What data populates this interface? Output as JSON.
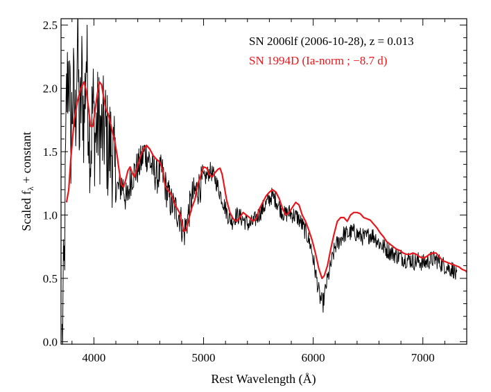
{
  "chart_data": {
    "type": "line",
    "xlabel": "Rest Wavelength (Å)",
    "ylabel_main": "Scaled f",
    "ylabel_sub": "λ",
    "ylabel_tail": " + constant",
    "xlim": [
      3700,
      7400
    ],
    "ylim": [
      -0.02,
      2.55
    ],
    "xticks": [
      4000,
      5000,
      6000,
      7000
    ],
    "xtick_labels": [
      "4000",
      "5000",
      "6000",
      "7000"
    ],
    "yticks": [
      0.0,
      0.5,
      1.0,
      1.5,
      2.0,
      2.5
    ],
    "ytick_labels": [
      "0.0",
      "0.5",
      "1.0",
      "1.5",
      "2.0",
      "2.5"
    ],
    "grid": false,
    "legend_position": "top-right",
    "series": [
      {
        "name": "SN 2006lf (2006-10-28), z = 0.013",
        "color": "#000000",
        "style": "noisy",
        "points": [
          [
            3710,
            0.0
          ],
          [
            3730,
            0.6
          ],
          [
            3750,
            1.9
          ],
          [
            3770,
            2.2
          ],
          [
            3790,
            1.6
          ],
          [
            3810,
            2.0
          ],
          [
            3830,
            1.7
          ],
          [
            3850,
            2.4
          ],
          [
            3870,
            1.6
          ],
          [
            3890,
            2.1
          ],
          [
            3910,
            1.7
          ],
          [
            3930,
            2.3
          ],
          [
            3950,
            1.8
          ],
          [
            3970,
            1.5
          ],
          [
            3990,
            1.9
          ],
          [
            4010,
            1.6
          ],
          [
            4040,
            1.75
          ],
          [
            4070,
            1.6
          ],
          [
            4100,
            1.7
          ],
          [
            4130,
            1.5
          ],
          [
            4160,
            1.55
          ],
          [
            4190,
            1.3
          ],
          [
            4220,
            1.2
          ],
          [
            4260,
            1.25
          ],
          [
            4300,
            1.1
          ],
          [
            4340,
            1.3
          ],
          [
            4380,
            1.35
          ],
          [
            4420,
            1.4
          ],
          [
            4460,
            1.5
          ],
          [
            4500,
            1.45
          ],
          [
            4540,
            1.35
          ],
          [
            4580,
            1.3
          ],
          [
            4620,
            1.35
          ],
          [
            4660,
            1.2
          ],
          [
            4700,
            1.1
          ],
          [
            4740,
            1.05
          ],
          [
            4780,
            1.0
          ],
          [
            4820,
            0.85
          ],
          [
            4860,
            1.0
          ],
          [
            4900,
            1.15
          ],
          [
            4940,
            1.2
          ],
          [
            4980,
            1.25
          ],
          [
            5020,
            1.3
          ],
          [
            5060,
            1.35
          ],
          [
            5100,
            1.3
          ],
          [
            5140,
            1.2
          ],
          [
            5180,
            1.1
          ],
          [
            5220,
            1.0
          ],
          [
            5260,
            0.95
          ],
          [
            5300,
            1.0
          ],
          [
            5340,
            0.98
          ],
          [
            5380,
            0.95
          ],
          [
            5420,
            0.92
          ],
          [
            5460,
            0.95
          ],
          [
            5500,
            1.0
          ],
          [
            5540,
            1.05
          ],
          [
            5580,
            1.1
          ],
          [
            5620,
            1.15
          ],
          [
            5660,
            1.12
          ],
          [
            5700,
            1.05
          ],
          [
            5740,
            1.0
          ],
          [
            5780,
            1.02
          ],
          [
            5820,
            1.0
          ],
          [
            5860,
            0.98
          ],
          [
            5900,
            0.92
          ],
          [
            5940,
            0.85
          ],
          [
            5980,
            0.75
          ],
          [
            6020,
            0.55
          ],
          [
            6060,
            0.35
          ],
          [
            6090,
            0.3
          ],
          [
            6120,
            0.45
          ],
          [
            6160,
            0.6
          ],
          [
            6200,
            0.75
          ],
          [
            6240,
            0.8
          ],
          [
            6280,
            0.85
          ],
          [
            6320,
            0.85
          ],
          [
            6360,
            0.87
          ],
          [
            6400,
            0.85
          ],
          [
            6440,
            0.83
          ],
          [
            6480,
            0.82
          ],
          [
            6520,
            0.85
          ],
          [
            6560,
            0.83
          ],
          [
            6600,
            0.78
          ],
          [
            6640,
            0.75
          ],
          [
            6680,
            0.72
          ],
          [
            6720,
            0.7
          ],
          [
            6760,
            0.68
          ],
          [
            6800,
            0.67
          ],
          [
            6840,
            0.65
          ],
          [
            6880,
            0.65
          ],
          [
            6920,
            0.63
          ],
          [
            6960,
            0.64
          ],
          [
            7000,
            0.62
          ],
          [
            7040,
            0.63
          ],
          [
            7080,
            0.65
          ],
          [
            7120,
            0.65
          ],
          [
            7160,
            0.62
          ],
          [
            7200,
            0.6
          ],
          [
            7240,
            0.58
          ],
          [
            7280,
            0.57
          ],
          [
            7310,
            0.5
          ]
        ]
      },
      {
        "name": "SN 1994D (Ia-norm ; −8.7 d)",
        "color": "#e8171c",
        "style": "smooth",
        "points": [
          [
            3750,
            1.1
          ],
          [
            3770,
            1.2
          ],
          [
            3790,
            1.45
          ],
          [
            3820,
            1.75
          ],
          [
            3850,
            1.9
          ],
          [
            3880,
            2.0
          ],
          [
            3910,
            2.05
          ],
          [
            3930,
            1.98
          ],
          [
            3950,
            1.85
          ],
          [
            3970,
            1.7
          ],
          [
            3990,
            1.7
          ],
          [
            4010,
            1.82
          ],
          [
            4030,
            1.95
          ],
          [
            4050,
            2.05
          ],
          [
            4070,
            2.03
          ],
          [
            4090,
            1.92
          ],
          [
            4110,
            1.83
          ],
          [
            4130,
            1.8
          ],
          [
            4150,
            1.73
          ],
          [
            4170,
            1.65
          ],
          [
            4190,
            1.58
          ],
          [
            4210,
            1.48
          ],
          [
            4230,
            1.35
          ],
          [
            4250,
            1.24
          ],
          [
            4270,
            1.22
          ],
          [
            4290,
            1.28
          ],
          [
            4310,
            1.35
          ],
          [
            4330,
            1.38
          ],
          [
            4350,
            1.33
          ],
          [
            4370,
            1.3
          ],
          [
            4390,
            1.36
          ],
          [
            4420,
            1.45
          ],
          [
            4450,
            1.52
          ],
          [
            4480,
            1.55
          ],
          [
            4510,
            1.52
          ],
          [
            4540,
            1.47
          ],
          [
            4570,
            1.44
          ],
          [
            4600,
            1.42
          ],
          [
            4630,
            1.35
          ],
          [
            4650,
            1.23
          ],
          [
            4670,
            1.2
          ],
          [
            4700,
            1.17
          ],
          [
            4720,
            1.13
          ],
          [
            4740,
            1.08
          ],
          [
            4760,
            1.05
          ],
          [
            4780,
            1.02
          ],
          [
            4800,
            0.95
          ],
          [
            4820,
            0.87
          ],
          [
            4840,
            0.88
          ],
          [
            4860,
            0.95
          ],
          [
            4890,
            1.05
          ],
          [
            4920,
            1.12
          ],
          [
            4950,
            1.25
          ],
          [
            4970,
            1.3
          ],
          [
            5000,
            1.38
          ],
          [
            5030,
            1.37
          ],
          [
            5050,
            1.32
          ],
          [
            5080,
            1.3
          ],
          [
            5100,
            1.33
          ],
          [
            5130,
            1.36
          ],
          [
            5150,
            1.37
          ],
          [
            5170,
            1.32
          ],
          [
            5190,
            1.22
          ],
          [
            5210,
            1.12
          ],
          [
            5240,
            1.02
          ],
          [
            5270,
            0.97
          ],
          [
            5300,
            0.95
          ],
          [
            5330,
            0.98
          ],
          [
            5360,
            1.02
          ],
          [
            5390,
            1.0
          ],
          [
            5420,
            0.98
          ],
          [
            5450,
            0.95
          ],
          [
            5480,
            0.97
          ],
          [
            5510,
            1.05
          ],
          [
            5540,
            1.1
          ],
          [
            5570,
            1.15
          ],
          [
            5600,
            1.18
          ],
          [
            5630,
            1.2
          ],
          [
            5660,
            1.18
          ],
          [
            5690,
            1.13
          ],
          [
            5720,
            1.05
          ],
          [
            5750,
            1.0
          ],
          [
            5780,
            1.02
          ],
          [
            5810,
            1.06
          ],
          [
            5840,
            1.1
          ],
          [
            5870,
            1.08
          ],
          [
            5900,
            1.0
          ],
          [
            5930,
            0.95
          ],
          [
            5960,
            0.88
          ],
          [
            5990,
            0.8
          ],
          [
            6020,
            0.7
          ],
          [
            6050,
            0.58
          ],
          [
            6080,
            0.5
          ],
          [
            6100,
            0.52
          ],
          [
            6130,
            0.6
          ],
          [
            6160,
            0.73
          ],
          [
            6190,
            0.85
          ],
          [
            6220,
            0.95
          ],
          [
            6250,
            0.98
          ],
          [
            6280,
            0.98
          ],
          [
            6310,
            0.95
          ],
          [
            6340,
            1.0
          ],
          [
            6370,
            1.02
          ],
          [
            6400,
            1.02
          ],
          [
            6430,
            1.01
          ],
          [
            6460,
            0.98
          ],
          [
            6490,
            0.97
          ],
          [
            6520,
            0.96
          ],
          [
            6550,
            0.93
          ],
          [
            6580,
            0.9
          ],
          [
            6610,
            0.86
          ],
          [
            6640,
            0.83
          ],
          [
            6670,
            0.79
          ],
          [
            6700,
            0.77
          ],
          [
            6730,
            0.75
          ],
          [
            6760,
            0.73
          ],
          [
            6790,
            0.72
          ],
          [
            6820,
            0.7
          ],
          [
            6850,
            0.69
          ],
          [
            6880,
            0.69
          ],
          [
            6910,
            0.7
          ],
          [
            6940,
            0.69
          ],
          [
            6970,
            0.67
          ],
          [
            7000,
            0.66
          ],
          [
            7030,
            0.67
          ],
          [
            7060,
            0.69
          ],
          [
            7090,
            0.7
          ],
          [
            7120,
            0.7
          ],
          [
            7150,
            0.67
          ],
          [
            7180,
            0.64
          ],
          [
            7210,
            0.63
          ],
          [
            7240,
            0.62
          ],
          [
            7270,
            0.61
          ],
          [
            7300,
            0.6
          ],
          [
            7330,
            0.59
          ],
          [
            7360,
            0.57
          ],
          [
            7390,
            0.56
          ],
          [
            7400,
            0.55
          ]
        ]
      }
    ]
  }
}
